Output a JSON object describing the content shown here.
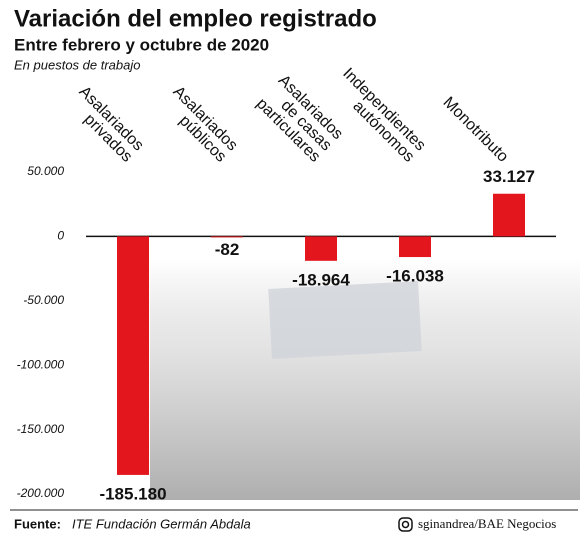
{
  "chart_data": {
    "type": "bar",
    "title": "Variación del empleo registrado",
    "subtitle": "Entre febrero y octubre de 2020",
    "y_label": "En puestos de trabajo",
    "categories": [
      [
        "Asalariados",
        "privados"
      ],
      [
        "Asalariados",
        "públicos"
      ],
      [
        "Asalariados",
        "de casas",
        "particulares"
      ],
      [
        "Independientes",
        "autónomos"
      ],
      [
        "Monotributo"
      ]
    ],
    "values": [
      -185180,
      -82,
      -18964,
      -16038,
      33127
    ],
    "value_labels": [
      "-185.180",
      "-82",
      "-18.964",
      "-16.038",
      "33.127"
    ],
    "color": "#e3161d",
    "ylim": [
      -200000,
      50000
    ],
    "yticks": [
      {
        "value": 50000,
        "label": "50.000"
      },
      0,
      {
        "value": -50000,
        "label": "-50.000"
      },
      {
        "value": -100000,
        "label": "-100.000"
      },
      {
        "value": -150000,
        "label": "-150.000"
      },
      {
        "value": -200000,
        "label": "-200.000"
      }
    ]
  },
  "footer": {
    "source_label": "Fuente:",
    "source": "ITE Fundación Germán Abdala",
    "credit": "sginandrea/BAE Negocios"
  }
}
